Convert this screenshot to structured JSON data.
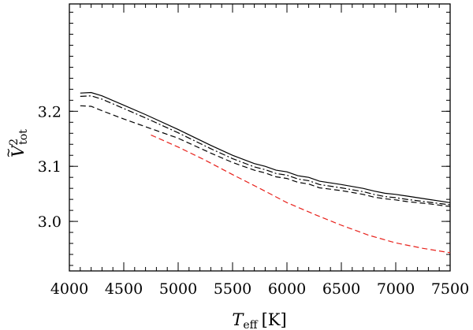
{
  "chart_data": {
    "type": "line",
    "title": "",
    "xlabel_symbol": "T",
    "xlabel_subscript": "eff",
    "xlabel_unit": "[K]",
    "ylabel_symbol": "V",
    "ylabel_accent": "~",
    "ylabel_superscript": "2",
    "ylabel_subscript": "tot",
    "xlim": [
      4000,
      7500
    ],
    "ylim": [
      2.91,
      3.395
    ],
    "x_ticks": [
      4000,
      4500,
      5000,
      5500,
      6000,
      6500,
      7000,
      7500
    ],
    "x_tick_labels": [
      "4000",
      "4500",
      "5000",
      "5500",
      "6000",
      "6500",
      "7000",
      "7500"
    ],
    "y_ticks": [
      3.0,
      3.1,
      3.2
    ],
    "y_tick_labels": [
      "3.0",
      "3.1",
      "3.2"
    ],
    "x_minor_step": 100,
    "y_minor_step": 0.02,
    "grid": false,
    "legend": "none",
    "series": [
      {
        "style": "solid",
        "color": "#000000",
        "x": [
          4100,
          4200,
          4300,
          4500,
          4700,
          5000,
          5300,
          5500,
          5700,
          5800,
          5900,
          6000,
          6100,
          6200,
          6300,
          6500,
          6700,
          6800,
          6900,
          7000,
          7100,
          7300,
          7500
        ],
        "y": [
          3.233,
          3.234,
          3.228,
          3.211,
          3.194,
          3.167,
          3.138,
          3.12,
          3.105,
          3.1,
          3.093,
          3.09,
          3.083,
          3.08,
          3.073,
          3.067,
          3.06,
          3.055,
          3.051,
          3.049,
          3.046,
          3.04,
          3.034
        ]
      },
      {
        "style": "dash-dot",
        "color": "#000000",
        "x": [
          4100,
          4200,
          4300,
          4500,
          4700,
          5000,
          5300,
          5500,
          5700,
          5800,
          5900,
          6000,
          6100,
          6200,
          6300,
          6500,
          6700,
          6800,
          6900,
          7000,
          7100,
          7300,
          7500
        ],
        "y": [
          3.227,
          3.228,
          3.222,
          3.205,
          3.188,
          3.161,
          3.132,
          3.114,
          3.099,
          3.094,
          3.087,
          3.084,
          3.077,
          3.074,
          3.067,
          3.061,
          3.054,
          3.049,
          3.045,
          3.043,
          3.04,
          3.035,
          3.03
        ]
      },
      {
        "style": "dashed",
        "color": "#000000",
        "x": [
          4100,
          4200,
          4300,
          4500,
          4700,
          5000,
          5300,
          5500,
          5700,
          5800,
          5900,
          6000,
          6100,
          6200,
          6300,
          6500,
          6700,
          6800,
          6900,
          7000,
          7100,
          7300,
          7500
        ],
        "y": [
          3.21,
          3.209,
          3.201,
          3.186,
          3.172,
          3.151,
          3.124,
          3.107,
          3.093,
          3.088,
          3.081,
          3.078,
          3.071,
          3.068,
          3.061,
          3.056,
          3.049,
          3.044,
          3.041,
          3.039,
          3.036,
          3.032,
          3.027
        ]
      },
      {
        "style": "dashed",
        "color": "#e8211b",
        "x": [
          4750,
          5000,
          5250,
          5500,
          5750,
          6000,
          6250,
          6500,
          6750,
          7000,
          7250,
          7500
        ],
        "y": [
          3.157,
          3.135,
          3.111,
          3.085,
          3.06,
          3.034,
          3.013,
          2.993,
          2.975,
          2.961,
          2.951,
          2.943
        ]
      }
    ]
  }
}
